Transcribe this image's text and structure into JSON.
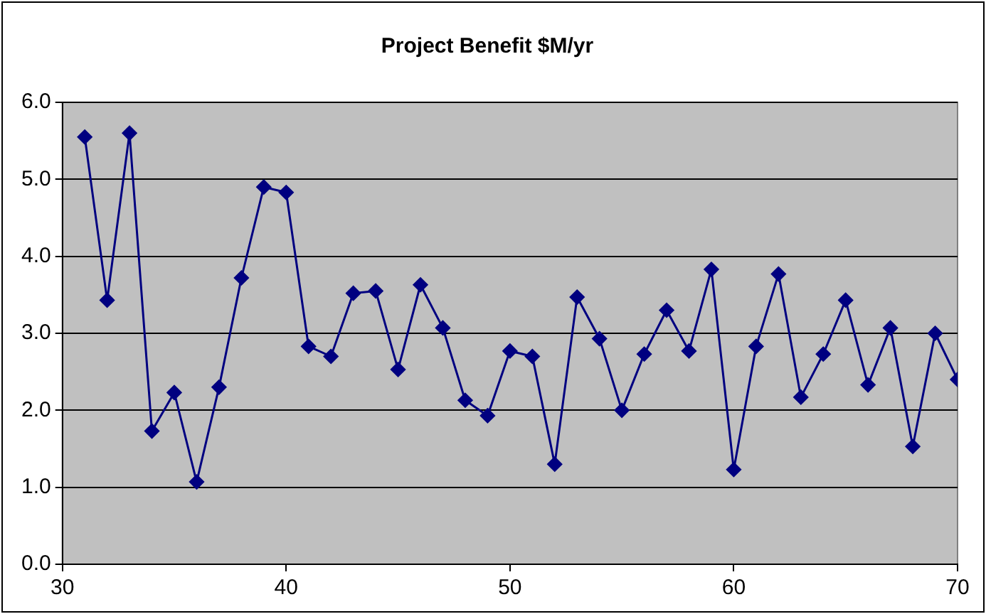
{
  "chart_data": {
    "type": "line",
    "title": "Project Benefit $M/yr",
    "x": [
      31,
      32,
      33,
      34,
      35,
      36,
      37,
      38,
      39,
      40,
      41,
      42,
      43,
      44,
      45,
      46,
      47,
      48,
      49,
      50,
      51,
      52,
      53,
      54,
      55,
      56,
      57,
      58,
      59,
      60,
      61,
      62,
      63,
      64,
      65,
      66,
      67,
      68,
      69,
      70
    ],
    "series": [
      {
        "color": "#000080",
        "values": [
          5.55,
          3.43,
          5.6,
          1.73,
          2.23,
          1.07,
          2.3,
          3.72,
          4.9,
          4.83,
          2.83,
          2.7,
          3.52,
          3.55,
          2.53,
          3.63,
          3.07,
          2.13,
          1.93,
          2.77,
          2.7,
          1.3,
          3.47,
          2.93,
          2.0,
          2.73,
          3.3,
          2.77,
          3.83,
          1.23,
          2.83,
          3.77,
          2.17,
          2.73,
          3.43,
          2.33,
          3.07,
          1.53,
          3.0,
          2.4
        ]
      }
    ],
    "xlim": [
      30,
      70
    ],
    "xticks": [
      30,
      40,
      50,
      60,
      70
    ],
    "ylim": [
      0,
      6
    ],
    "yticks": [
      {
        "value": 0,
        "label": "0.0"
      },
      {
        "value": 1,
        "label": "1.0"
      },
      {
        "value": 2,
        "label": "2.0"
      },
      {
        "value": 3,
        "label": "3.0"
      },
      {
        "value": 4,
        "label": "4.0"
      },
      {
        "value": 5,
        "label": "5.0"
      },
      {
        "value": 6,
        "label": "6.0"
      }
    ],
    "grid": "y",
    "legend": false,
    "marker": "diamond",
    "line_style": "solid"
  }
}
